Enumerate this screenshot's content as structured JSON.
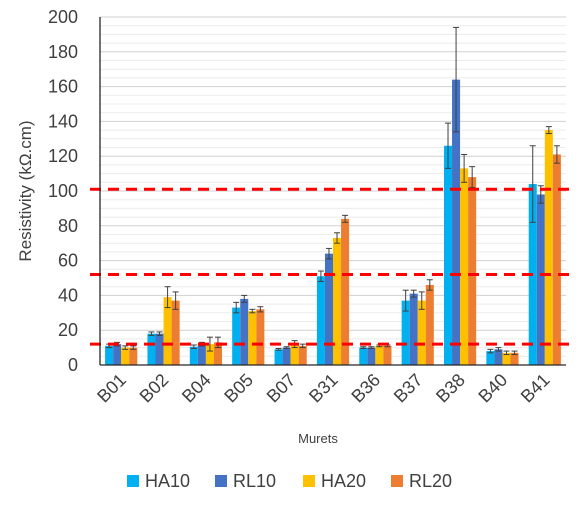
{
  "chart_data": {
    "type": "bar",
    "title": "",
    "xlabel": "Murets",
    "ylabel": "Resistivity (kΩ.cm)",
    "ylim": [
      0,
      200
    ],
    "yticks": [
      0,
      20,
      40,
      60,
      80,
      100,
      120,
      140,
      160,
      180,
      200
    ],
    "grid": true,
    "legend_position": "bottom",
    "categories": [
      "B01",
      "B02",
      "B04",
      "B05",
      "B07",
      "B31",
      "B36",
      "B37",
      "B38",
      "B40",
      "B41"
    ],
    "series": [
      {
        "name": "HA10",
        "color": "#00b0f0",
        "values": [
          11,
          18,
          10.5,
          33,
          9,
          51,
          10,
          37,
          126,
          8,
          104
        ],
        "errors": [
          1,
          1,
          1,
          3,
          0.5,
          3,
          0.5,
          6,
          13,
          1,
          22
        ]
      },
      {
        "name": "RL10",
        "color": "#4472c4",
        "values": [
          12,
          18,
          12,
          38,
          10,
          64,
          10,
          41,
          164,
          9,
          98
        ],
        "errors": [
          1,
          1,
          1,
          2,
          0.5,
          3,
          0.5,
          2,
          30,
          1,
          5
        ]
      },
      {
        "name": "HA20",
        "color": "#ffc000",
        "values": [
          10,
          39,
          12,
          31,
          12,
          73,
          11,
          37,
          113,
          7,
          135
        ],
        "errors": [
          1,
          6,
          4,
          1,
          2,
          3,
          0.5,
          5,
          8,
          1,
          2
        ]
      },
      {
        "name": "RL20",
        "color": "#ed7d31",
        "values": [
          10,
          37,
          13,
          32,
          11,
          84,
          11,
          46,
          108,
          7,
          121
        ],
        "errors": [
          1,
          5,
          3,
          1.5,
          1,
          2,
          0.5,
          3,
          6,
          1,
          5
        ]
      }
    ],
    "reference_lines": {
      "values": [
        12,
        52,
        101
      ],
      "color": "#ff0000",
      "style": "dashed"
    }
  }
}
